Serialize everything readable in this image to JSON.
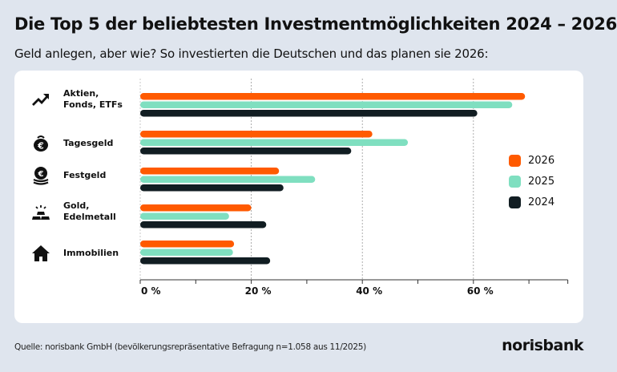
{
  "title": "Die Top 5 der beliebtesten Investmentmöglichkeiten 2024 – 2026",
  "subtitle": "Geld anlegen, aber wie? So investierten die Deutschen und das planen sie 2026:",
  "source": "Quelle: norisbank GmbH (bevölkerungsrepräsentative Befragung n=1.058 aus 11/2025)",
  "logo": "norisbank",
  "icons": [
    "trend-up-icon",
    "coin-purse-icon",
    "coin-stack-icon",
    "gold-bars-icon",
    "house-icon"
  ],
  "chart_data": {
    "type": "bar",
    "orientation": "horizontal",
    "categories": [
      "Aktien, Fonds, ETFs",
      "Tagesgeld",
      "Festgeld",
      "Gold, Edelmetall",
      "Immobilien"
    ],
    "series": [
      {
        "name": "2026",
        "color": "#ff5a00",
        "values": [
          69.3,
          41.8,
          25.0,
          20.0,
          16.9
        ]
      },
      {
        "name": "2025",
        "color": "#7fdfc0",
        "values": [
          67.0,
          48.2,
          31.5,
          16.0,
          16.7
        ]
      },
      {
        "name": "2024",
        "color": "#111d22",
        "values": [
          60.7,
          38.0,
          25.8,
          22.7,
          23.4
        ]
      }
    ],
    "xlim": [
      0,
      77
    ],
    "xticks": [
      0,
      20,
      40,
      60
    ],
    "xtick_labels": [
      "0 %",
      "20 %",
      "40 %",
      "60 %"
    ],
    "minor_ticks": [
      10,
      30,
      50,
      70
    ],
    "grid": true,
    "legend": "right"
  }
}
